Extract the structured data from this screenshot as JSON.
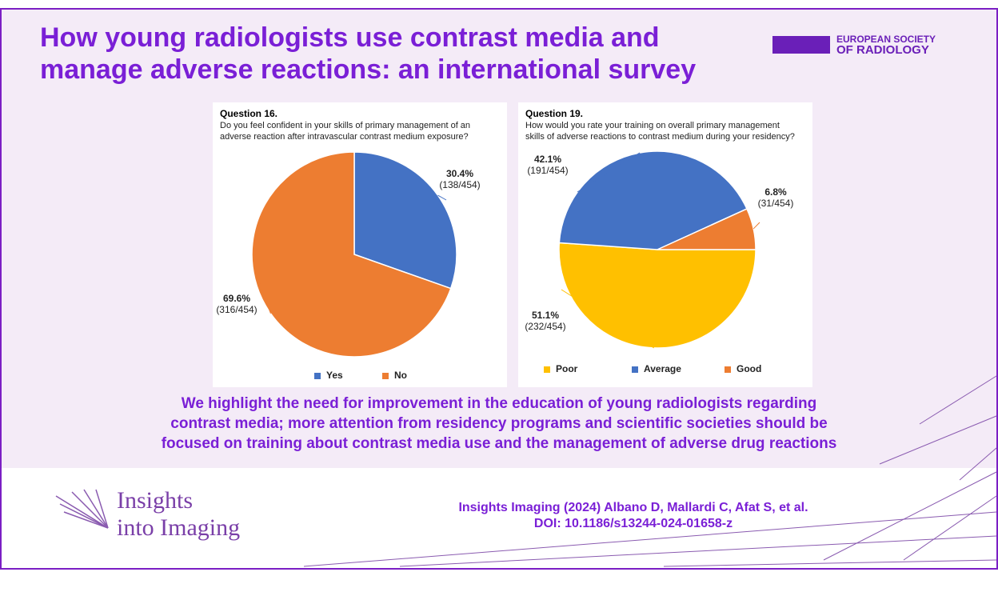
{
  "title_lines": [
    "How young radiologists use contrast media and",
    "manage adverse reactions: an international survey"
  ],
  "logo": {
    "lines": [
      "EUROPEAN SOCIETY",
      "OF RADIOLOGY"
    ]
  },
  "chart_data": [
    {
      "type": "pie",
      "title": "Question 16.",
      "subtitle_lines": [
        "Do you feel confident in your skills of primary management of an",
        "adverse reaction after intravascular contrast medium exposure?"
      ],
      "categories": [
        "Yes",
        "No"
      ],
      "values": [
        30.4,
        69.6
      ],
      "value_labels": [
        "30.4%",
        "69.6%"
      ],
      "count_labels": [
        "(138/454)",
        "(316/454)"
      ],
      "colors": [
        "#4472c4",
        "#ed7d31"
      ],
      "legend": "bottom"
    },
    {
      "type": "pie",
      "title": "Question 19.",
      "subtitle_lines": [
        "How would you rate your training on overall primary management",
        "skills of adverse reactions to contrast medium during your residency?"
      ],
      "categories": [
        "Poor",
        "Average",
        "Good"
      ],
      "values": [
        51.1,
        42.1,
        6.8
      ],
      "value_labels": [
        "51.1%",
        "42.1%",
        "6.8%"
      ],
      "count_labels": [
        "(232/454)",
        "(191/454)",
        "(31/454)"
      ],
      "colors": [
        "#ffc000",
        "#4472c4",
        "#ed7d31"
      ],
      "legend": "bottom"
    }
  ],
  "conclusion_lines": [
    "We highlight the need for improvement in the education of young radiologists regarding",
    "contrast media; more attention from residency programs and scientific societies should be",
    "focused on training about contrast media use and the management of adverse drug reactions"
  ],
  "journal": {
    "lines": [
      "Insights",
      "into Imaging"
    ]
  },
  "citation_lines": [
    "Insights Imaging (2024) Albano D, Mallardi C, Afat S, et al.",
    "DOI: 10.1186/s13244-024-01658-z"
  ]
}
